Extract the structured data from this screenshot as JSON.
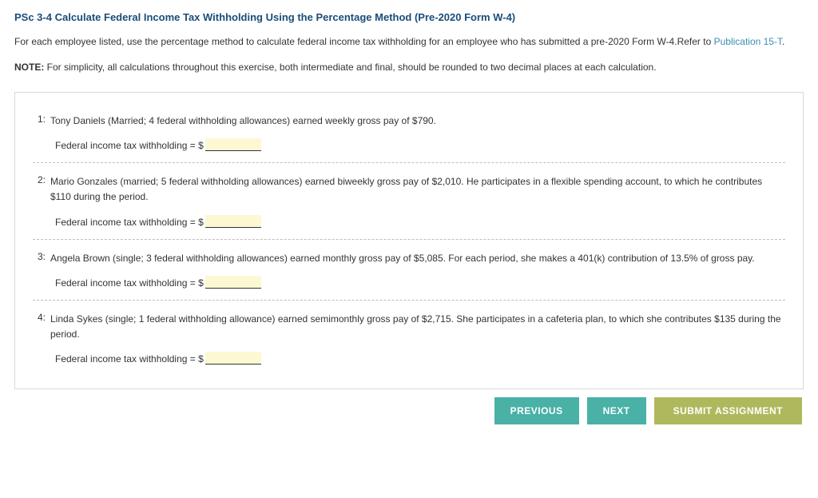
{
  "header": {
    "title": "PSc 3-4 Calculate Federal Income Tax Withholding Using the Percentage Method (Pre-2020 Form W-4)"
  },
  "intro": {
    "text_before_link": "For each employee listed, use the percentage method to calculate federal income tax withholding for an employee who has submitted a pre-2020 Form W-4.Refer to ",
    "link_text": "Publication 15-T",
    "text_after_link": "."
  },
  "note": {
    "label": "NOTE:",
    "text": " For simplicity, all calculations throughout this exercise, both intermediate and final, should be rounded to two decimal places at each calculation."
  },
  "questions": [
    {
      "num": "1:",
      "text": "Tony Daniels (Married; 4 federal withholding allowances) earned weekly gross pay of $790.",
      "answer_label": "Federal income tax withholding = $"
    },
    {
      "num": "2:",
      "text": "Mario Gonzales (married; 5 federal withholding allowances) earned biweekly gross pay of $2,010. He participates in a flexible spending account, to which he contributes $110 during the period.",
      "answer_label": "Federal income tax withholding = $"
    },
    {
      "num": "3:",
      "text": "Angela Brown (single; 3 federal withholding allowances) earned monthly gross pay of $5,085. For each period, she makes a 401(k) contribution of 13.5% of gross pay.",
      "answer_label": "Federal income tax withholding = $"
    },
    {
      "num": "4:",
      "text": "Linda Sykes (single; 1 federal withholding allowance) earned semimonthly gross pay of $2,715. She participates in a cafeteria plan, to which she contributes $135 during the period.",
      "answer_label": "Federal income tax withholding = $"
    }
  ],
  "buttons": {
    "previous": "PREVIOUS",
    "next": "NEXT",
    "submit": "SUBMIT ASSIGNMENT"
  },
  "colors": {
    "title": "#1a4d7a",
    "link": "#3b8eb5",
    "blank_bg": "#fcf9d2",
    "btn_teal": "#49b1a6",
    "btn_olive": "#b0b85d",
    "panel_border": "#d8d8d8",
    "dashed": "#bdbdbd"
  }
}
